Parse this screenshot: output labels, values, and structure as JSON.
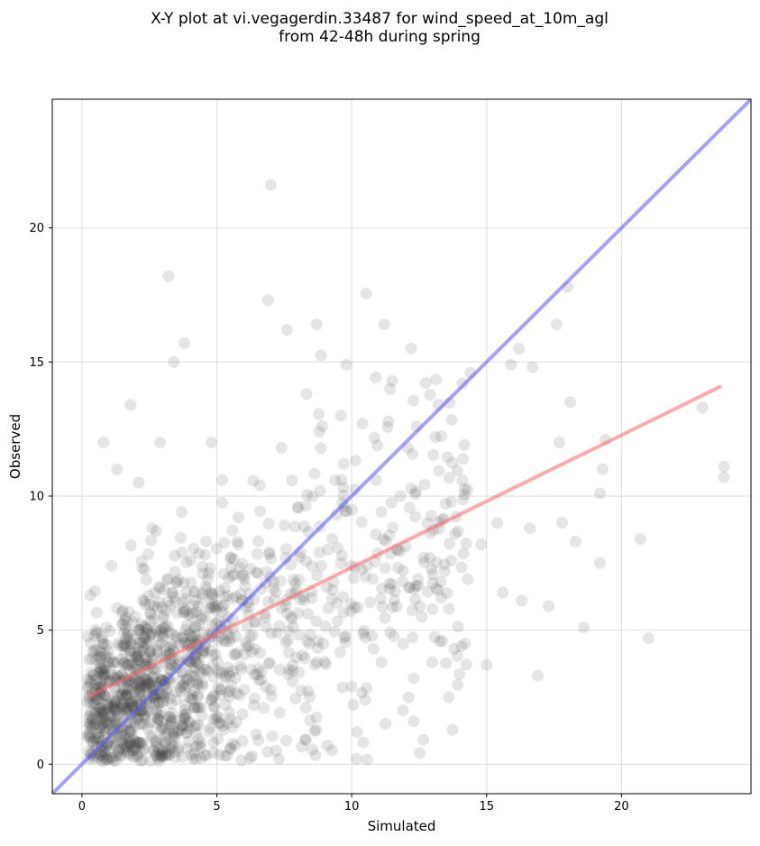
{
  "chart_data": {
    "type": "scatter",
    "title": "X-Y plot at vi.vegagerdin.33487 for wind_speed_at_10m_agl\nfrom 42-48h during spring",
    "xlabel": "Simulated",
    "ylabel": "Observed",
    "xlim": [
      -1.1,
      24.8
    ],
    "ylim": [
      -1.1,
      24.8
    ],
    "xticks": [
      0,
      5,
      10,
      15,
      20
    ],
    "yticks": [
      0,
      5,
      10,
      15,
      20
    ],
    "grid": true,
    "colors": {
      "points": "#333333",
      "identity_line": "#5555ff",
      "fit_line": "#ff6666"
    },
    "series": [
      {
        "kind": "points",
        "x": [
          7.0,
          3.2,
          6.9,
          8.7,
          11.2,
          7.6,
          12.2,
          18.0,
          17.6,
          3.8,
          3.4,
          1.8,
          9.8,
          11.5,
          9.6,
          10.4,
          12.4,
          13.1,
          14.1,
          14.4,
          15.9,
          16.2,
          16.7,
          17.7,
          18.1,
          23.0,
          23.8,
          23.8,
          21.0,
          18.6,
          19.4,
          19.2,
          20.7,
          16.9,
          15.0,
          14.2,
          13.6,
          12.3,
          11.9,
          10.5,
          0.8,
          1.3,
          2.1,
          2.9,
          4.8,
          5.2,
          1.7,
          0.9,
          2.0,
          3.1,
          4.4,
          5.5,
          6.3,
          7.2,
          8.3,
          9.1,
          10.2,
          11.1,
          12.6,
          13.3,
          14.8,
          15.4,
          16.6,
          17.8,
          19.2,
          2.2,
          3.3,
          4.1,
          1.4,
          0.7,
          0.5,
          0.3,
          1.1,
          2.6,
          3.7,
          4.6,
          5.8,
          6.6,
          7.4,
          8.8,
          9.7,
          10.9,
          11.8,
          12.9,
          14.3,
          15.6,
          16.3,
          17.3,
          18.3,
          19.3,
          2.4,
          3.0,
          3.6,
          4.2,
          5.0,
          5.6,
          6.2,
          7.1,
          8.1,
          9.3
        ],
        "y": [
          21.6,
          18.2,
          17.3,
          16.4,
          16.4,
          16.2,
          15.5,
          17.8,
          16.4,
          15.7,
          15.0,
          13.4,
          14.9,
          14.3,
          13.0,
          12.7,
          12.6,
          12.2,
          14.2,
          14.6,
          14.9,
          15.5,
          14.8,
          12.0,
          13.5,
          13.3,
          11.1,
          10.7,
          4.7,
          5.1,
          12.1,
          7.5,
          8.4,
          3.3,
          3.7,
          4.5,
          2.5,
          1.6,
          2.0,
          2.4,
          12.0,
          11.0,
          10.5,
          12.0,
          12.0,
          10.6,
          0.4,
          0.2,
          0.5,
          0.3,
          0.8,
          0.6,
          0.3,
          0.5,
          0.9,
          0.7,
          1.2,
          3.8,
          5.5,
          6.8,
          8.2,
          9.0,
          8.8,
          9.0,
          10.1,
          1.5,
          1.6,
          2.4,
          3.1,
          4.0,
          5.0,
          6.3,
          7.4,
          8.8,
          9.4,
          8.3,
          9.2,
          10.4,
          11.8,
          12.4,
          11.2,
          10.6,
          10.0,
          7.7,
          6.9,
          6.4,
          6.1,
          5.9,
          8.3,
          11.0,
          4.5,
          5.1,
          3.8,
          6.1,
          4.9,
          5.4,
          4.4,
          6.8,
          7.9,
          6.5
        ]
      },
      {
        "kind": "line",
        "name": "",
        "x": [
          -1.1,
          24.8
        ],
        "y": [
          -1.1,
          24.8
        ]
      },
      {
        "kind": "line",
        "name": "",
        "x": [
          0.2,
          23.7
        ],
        "y": [
          2.5,
          14.1
        ]
      }
    ]
  }
}
